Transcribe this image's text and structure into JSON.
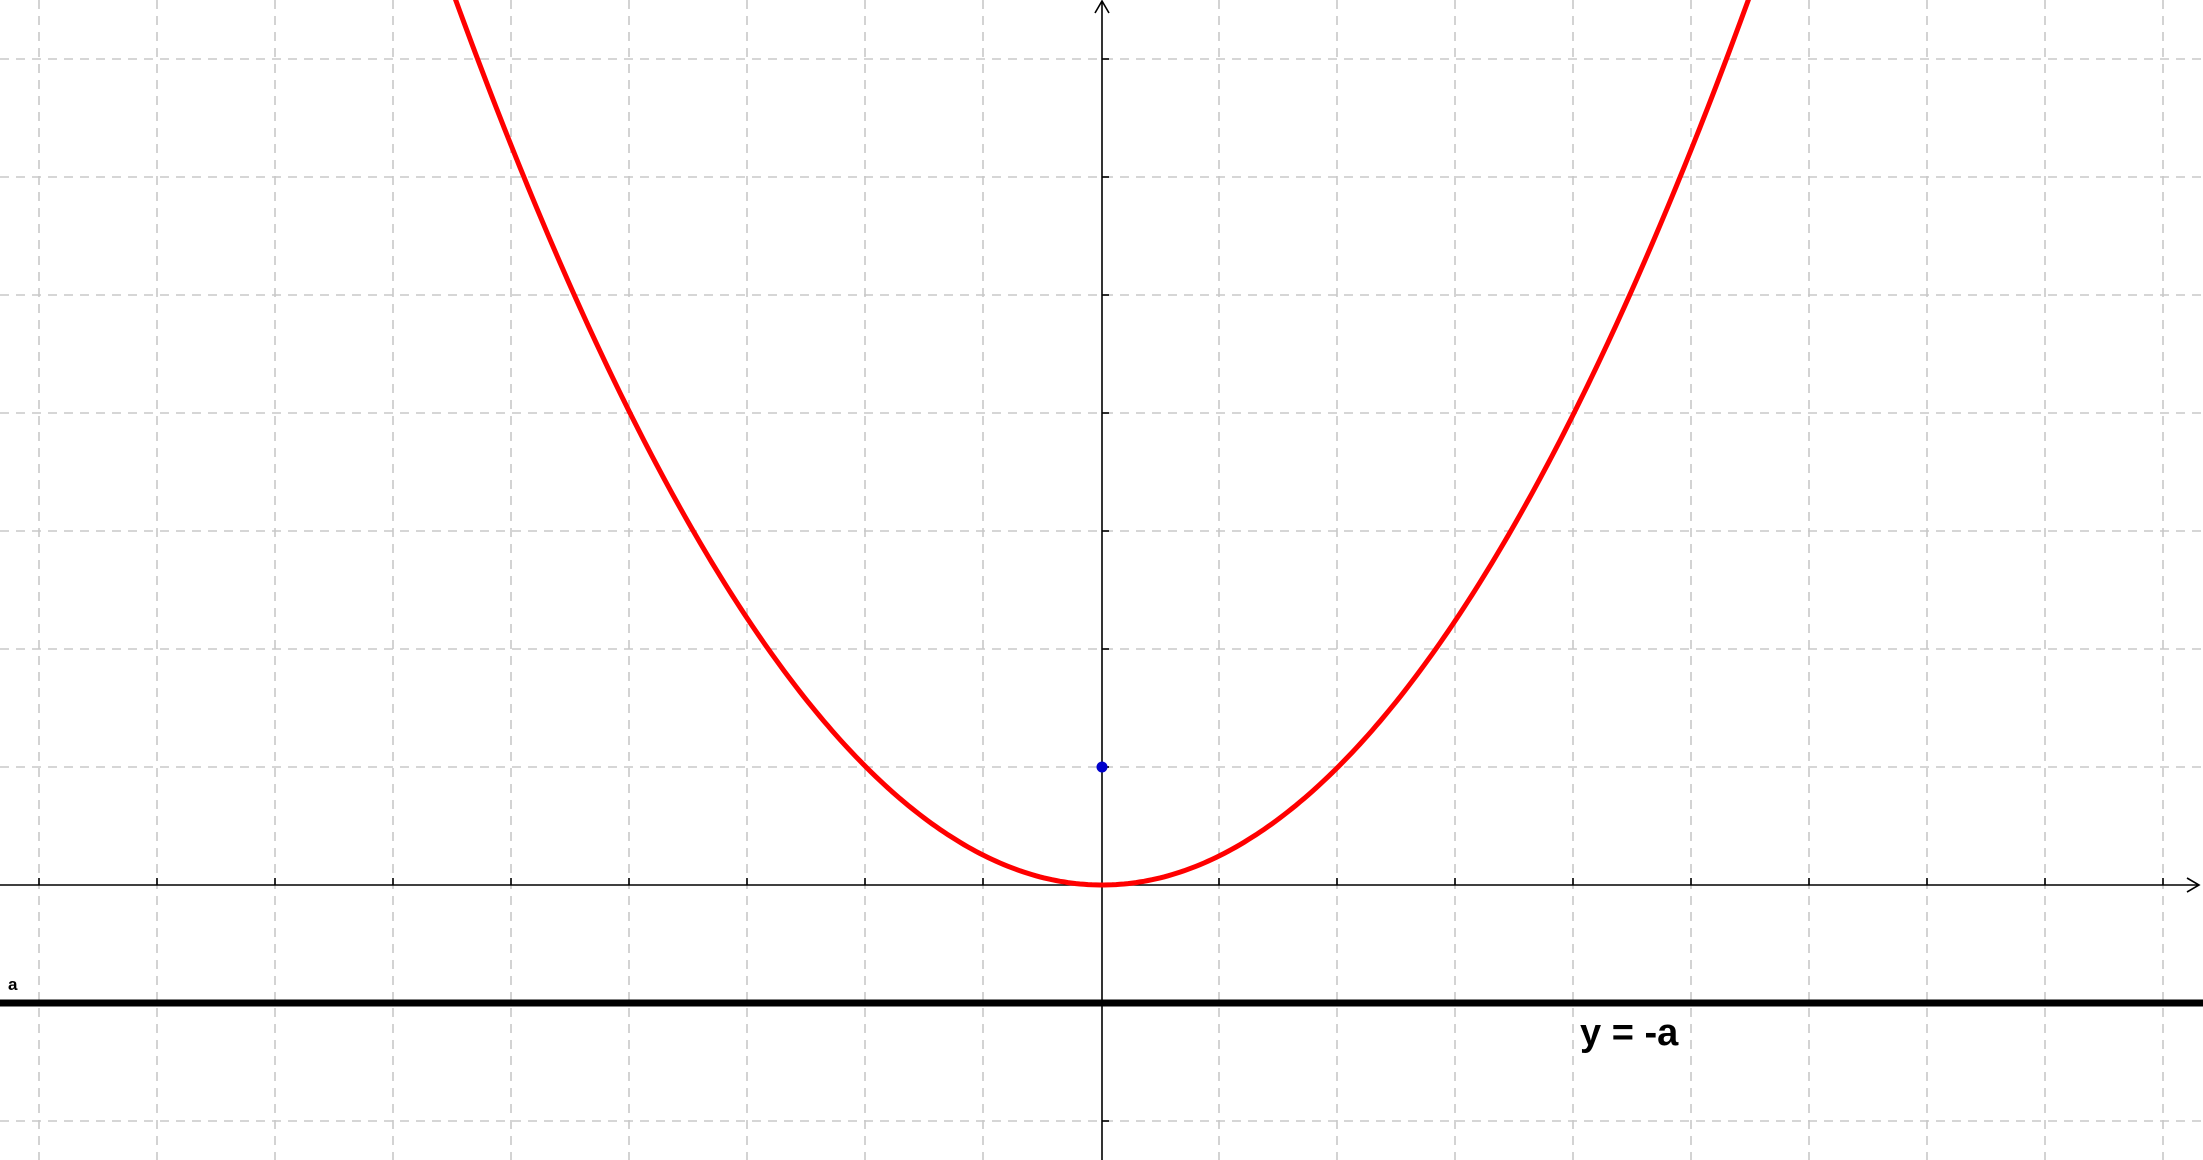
{
  "labels": {
    "directrix_equation": "y = -a",
    "directrix_name": "a"
  },
  "parabola": {
    "vertex": [
      0,
      0
    ],
    "focus": [
      0,
      1
    ],
    "directrix_y": -1
  },
  "colors": {
    "parabola": "#ff0000",
    "focus": "#0000cc",
    "directrix": "#000000",
    "grid": "#c8c8c8"
  }
}
